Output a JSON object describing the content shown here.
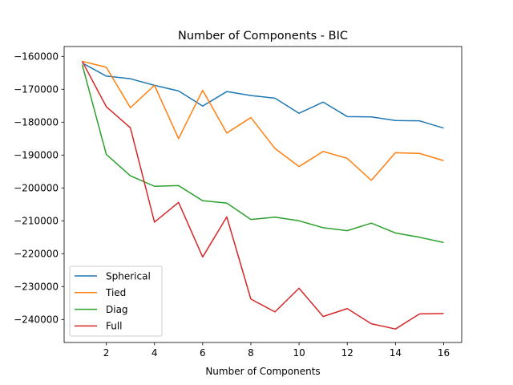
{
  "chart_data": {
    "type": "line",
    "title": "Number of Components - BIC",
    "xlabel": "Number of Components",
    "ylabel": "",
    "xlim": [
      0.25,
      16.75
    ],
    "ylim": [
      -247000,
      -157000
    ],
    "x_ticks": [
      2,
      4,
      6,
      8,
      10,
      12,
      14,
      16
    ],
    "x_tick_labels": [
      "2",
      "4",
      "6",
      "8",
      "10",
      "12",
      "14",
      "16"
    ],
    "y_ticks": [
      -160000,
      -170000,
      -180000,
      -190000,
      -200000,
      -210000,
      -220000,
      -230000,
      -240000
    ],
    "y_tick_labels": [
      "−160000",
      "−170000",
      "−180000",
      "−190000",
      "−200000",
      "−210000",
      "−220000",
      "−230000",
      "−240000"
    ],
    "grid": false,
    "legend_position": "lower-left",
    "x": [
      1,
      2,
      3,
      4,
      5,
      6,
      7,
      8,
      9,
      10,
      11,
      12,
      13,
      14,
      15,
      16
    ],
    "series": [
      {
        "name": "Spherical",
        "color": "#1f77b4",
        "values": [
          -162000,
          -166000,
          -166800,
          -168800,
          -170500,
          -175100,
          -170700,
          -171900,
          -172700,
          -177300,
          -173900,
          -178300,
          -178400,
          -179500,
          -179600,
          -181800
        ]
      },
      {
        "name": "Tied",
        "color": "#ff7f0e",
        "values": [
          -161500,
          -163300,
          -175600,
          -168800,
          -185000,
          -170300,
          -183300,
          -178600,
          -188000,
          -193500,
          -188900,
          -191000,
          -197700,
          -189300,
          -189500,
          -191700
        ]
      },
      {
        "name": "Diag",
        "color": "#2ca02c",
        "values": [
          -162500,
          -189800,
          -196300,
          -199500,
          -199300,
          -203900,
          -204600,
          -209600,
          -208900,
          -210000,
          -212100,
          -213000,
          -210700,
          -213700,
          -215000,
          -216600
        ]
      },
      {
        "name": "Full",
        "color": "#d62728",
        "values": [
          -161500,
          -175300,
          -181700,
          -210400,
          -204400,
          -221000,
          -208800,
          -233800,
          -237700,
          -230500,
          -239100,
          -236700,
          -241300,
          -242900,
          -238300,
          -238200
        ]
      }
    ]
  }
}
